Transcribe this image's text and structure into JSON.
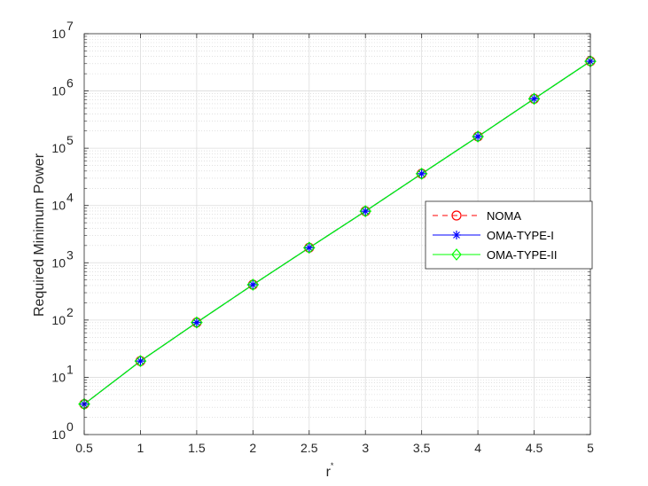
{
  "chart_data": {
    "type": "line",
    "xlabel": "r",
    "xlabel_superscript": "*",
    "ylabel": "Required Minimum Power",
    "y_scale": "log",
    "xlim": [
      0.5,
      5
    ],
    "ylim": [
      1,
      10000000
    ],
    "x_ticks": [
      "0.5",
      "1",
      "1.5",
      "2",
      "2.5",
      "3",
      "3.5",
      "4",
      "4.5",
      "5"
    ],
    "y_tick_base": "10",
    "y_tick_exponents": [
      "0",
      "1",
      "2",
      "3",
      "4",
      "5",
      "6",
      "7"
    ],
    "grid": true,
    "minor_grid": true,
    "legend_position": "right",
    "x": [
      0.5,
      1,
      1.5,
      2,
      2.5,
      3,
      3.5,
      4,
      4.5,
      5
    ],
    "series": [
      {
        "name": "NOMA",
        "color": "#ff0000",
        "marker": "circle",
        "line_style": "dashed",
        "values": [
          3.4,
          19.2,
          90.5,
          414,
          1830,
          7950,
          35900,
          160000,
          730000,
          3300000
        ]
      },
      {
        "name": "OMA-TYPE-I",
        "color": "#0000ff",
        "marker": "asterisk",
        "line_style": "solid",
        "values": [
          3.4,
          19.2,
          90.5,
          414,
          1830,
          7950,
          35900,
          160000,
          730000,
          3300000
        ]
      },
      {
        "name": "OMA-TYPE-II",
        "color": "#00ff00",
        "marker": "diamond",
        "line_style": "solid",
        "values": [
          3.4,
          19.2,
          90.5,
          414,
          1830,
          7950,
          35900,
          160000,
          730000,
          3300000
        ]
      }
    ]
  }
}
